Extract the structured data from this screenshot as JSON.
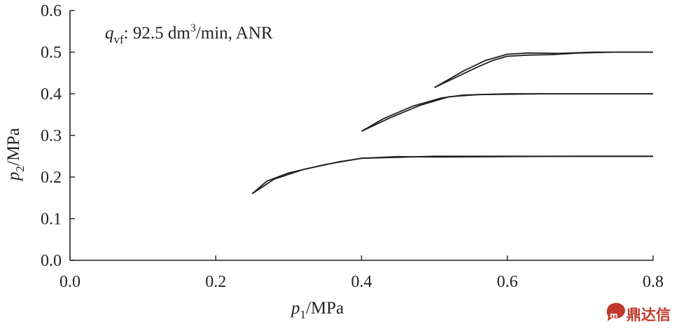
{
  "chart_data": {
    "type": "line",
    "x_ticks": [
      "0.0",
      "0.2",
      "0.4",
      "0.6",
      "0.8"
    ],
    "y_ticks": [
      "0.0",
      "0.1",
      "0.2",
      "0.3",
      "0.4",
      "0.5",
      "0.6"
    ],
    "xlim": [
      0,
      0.8
    ],
    "ylim": [
      0,
      0.6
    ],
    "grid": false,
    "xlabel": {
      "symbol": "p",
      "sub": "1",
      "unit": "/MPa"
    },
    "ylabel": {
      "symbol": "p",
      "sub": "2",
      "unit": "/MPa"
    },
    "annotation": {
      "symbol": "q",
      "sub": "vf",
      "text_before_sup": ": 92.5 dm",
      "sup": "3",
      "text_after_sup": "/min, ANR"
    },
    "series": [
      {
        "x": [
          0.25,
          0.27,
          0.3,
          0.35,
          0.4,
          0.5,
          0.6,
          0.7,
          0.8
        ],
        "y": [
          0.16,
          0.19,
          0.21,
          0.23,
          0.245,
          0.25,
          0.25,
          0.25,
          0.25
        ]
      },
      {
        "x": [
          0.25,
          0.28,
          0.32,
          0.37,
          0.4,
          0.45,
          0.5,
          0.6,
          0.7,
          0.8
        ],
        "y": [
          0.16,
          0.195,
          0.218,
          0.237,
          0.245,
          0.249,
          0.248,
          0.249,
          0.25,
          0.25
        ]
      },
      {
        "x": [
          0.4,
          0.43,
          0.47,
          0.51,
          0.54,
          0.6,
          0.7,
          0.8
        ],
        "y": [
          0.31,
          0.34,
          0.37,
          0.39,
          0.397,
          0.4,
          0.4,
          0.4
        ]
      },
      {
        "x": [
          0.4,
          0.44,
          0.48,
          0.52,
          0.56,
          0.65,
          0.8
        ],
        "y": [
          0.31,
          0.343,
          0.372,
          0.393,
          0.398,
          0.4,
          0.4
        ]
      },
      {
        "x": [
          0.5,
          0.53,
          0.56,
          0.58,
          0.6,
          0.63,
          0.66,
          0.7,
          0.75,
          0.8
        ],
        "y": [
          0.415,
          0.44,
          0.465,
          0.48,
          0.49,
          0.493,
          0.494,
          0.498,
          0.5,
          0.5
        ]
      },
      {
        "x": [
          0.5,
          0.54,
          0.57,
          0.6,
          0.63,
          0.67,
          0.72,
          0.8
        ],
        "y": [
          0.415,
          0.455,
          0.48,
          0.495,
          0.498,
          0.497,
          0.5,
          0.5
        ]
      }
    ]
  },
  "watermark": {
    "icon": "chat-bubble-icon",
    "text": "鼎达信"
  }
}
